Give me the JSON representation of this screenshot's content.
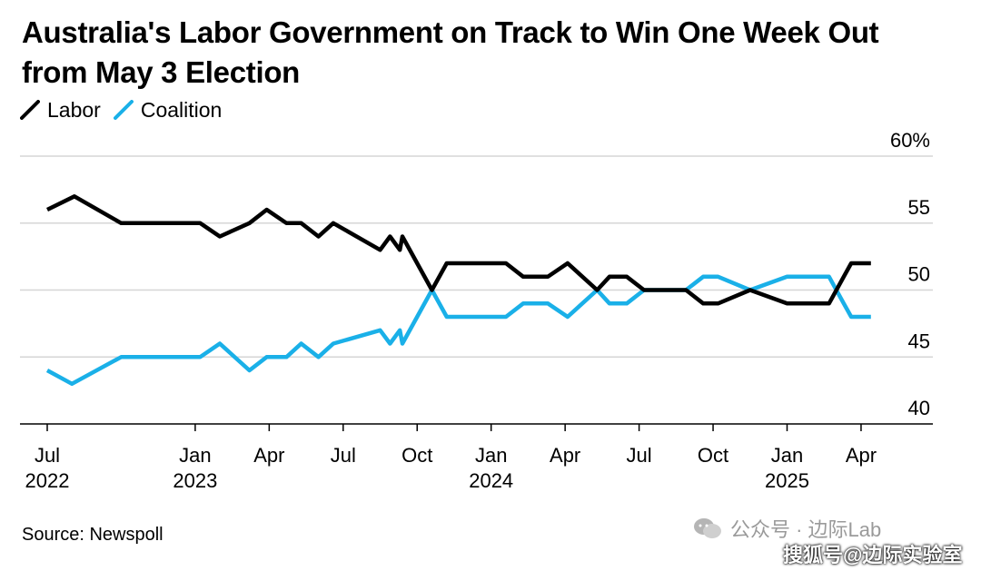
{
  "chart_data": {
    "type": "line",
    "title": "Australia's Labor Government on Track to Win One Week Out from May 3 Election",
    "xlabel": "",
    "ylabel": "",
    "ylim": [
      40,
      60
    ],
    "y_ticks": [
      "60%",
      "55",
      "50",
      "45",
      "40"
    ],
    "y_tick_values": [
      60,
      55,
      50,
      45,
      40
    ],
    "x_ticks": [
      {
        "month": "Jul",
        "year": "2022",
        "m": 0
      },
      {
        "month": "Jan",
        "year": "2023",
        "m": 6
      },
      {
        "month": "Apr",
        "year": "",
        "m": 9
      },
      {
        "month": "Jul",
        "year": "",
        "m": 12
      },
      {
        "month": "Oct",
        "year": "",
        "m": 15
      },
      {
        "month": "Jan",
        "year": "2024",
        "m": 18
      },
      {
        "month": "Apr",
        "year": "",
        "m": 21
      },
      {
        "month": "Jul",
        "year": "",
        "m": 24
      },
      {
        "month": "Oct",
        "year": "",
        "m": 27
      },
      {
        "month": "Jan",
        "year": "2025",
        "m": 30
      },
      {
        "month": "Apr",
        "year": "",
        "m": 33
      }
    ],
    "legend_position": "top-left",
    "grid": true,
    "series": [
      {
        "name": "Labor",
        "color": "#000000",
        "points": [
          [
            0,
            56
          ],
          [
            1.1,
            57
          ],
          [
            3,
            55
          ],
          [
            6.2,
            55
          ],
          [
            7,
            54
          ],
          [
            8.2,
            55
          ],
          [
            8.9,
            56
          ],
          [
            9.7,
            55
          ],
          [
            10.3,
            55
          ],
          [
            11,
            54
          ],
          [
            11.6,
            55
          ],
          [
            13.5,
            53
          ],
          [
            13.9,
            54
          ],
          [
            14.3,
            53
          ],
          [
            14.4,
            54
          ],
          [
            15.6,
            50
          ],
          [
            16.2,
            52
          ],
          [
            18.6,
            52
          ],
          [
            19.3,
            51
          ],
          [
            20.3,
            51
          ],
          [
            21.1,
            52
          ],
          [
            22.3,
            50
          ],
          [
            22.8,
            51
          ],
          [
            23.5,
            51
          ],
          [
            24.2,
            50
          ],
          [
            25.9,
            50
          ],
          [
            26.6,
            49
          ],
          [
            27.2,
            49
          ],
          [
            28.5,
            50
          ],
          [
            30,
            49
          ],
          [
            31.7,
            49
          ],
          [
            32.3,
            51
          ],
          [
            32.6,
            52
          ],
          [
            33.4,
            52
          ]
        ]
      },
      {
        "name": "Coalition",
        "color": "#1ab0e8",
        "points": [
          [
            0,
            44
          ],
          [
            1,
            43
          ],
          [
            3,
            45
          ],
          [
            6.2,
            45
          ],
          [
            7,
            46
          ],
          [
            8.2,
            44
          ],
          [
            8.9,
            45
          ],
          [
            9.7,
            45
          ],
          [
            10.3,
            46
          ],
          [
            11,
            45
          ],
          [
            11.6,
            46
          ],
          [
            13.5,
            47
          ],
          [
            13.9,
            46
          ],
          [
            14.3,
            47
          ],
          [
            14.4,
            46
          ],
          [
            15.6,
            50
          ],
          [
            16.2,
            48
          ],
          [
            18.6,
            48
          ],
          [
            19.3,
            49
          ],
          [
            20.3,
            49
          ],
          [
            21.1,
            48
          ],
          [
            22.3,
            50
          ],
          [
            22.8,
            49
          ],
          [
            23.5,
            49
          ],
          [
            24.2,
            50
          ],
          [
            25.9,
            50
          ],
          [
            26.6,
            51
          ],
          [
            27.2,
            51
          ],
          [
            28.5,
            50
          ],
          [
            30,
            51
          ],
          [
            31.7,
            51
          ],
          [
            32.3,
            49
          ],
          [
            32.6,
            48
          ],
          [
            33.4,
            48
          ]
        ]
      }
    ]
  },
  "legend": {
    "labor_label": "Labor",
    "coalition_label": "Coalition",
    "labor_color": "#000000",
    "coalition_color": "#1ab0e8"
  },
  "footer": {
    "source": "Source: Newspoll",
    "watermark": "公众号 · 边际Lab",
    "watermark2": "搜狐号@边际实验室"
  }
}
